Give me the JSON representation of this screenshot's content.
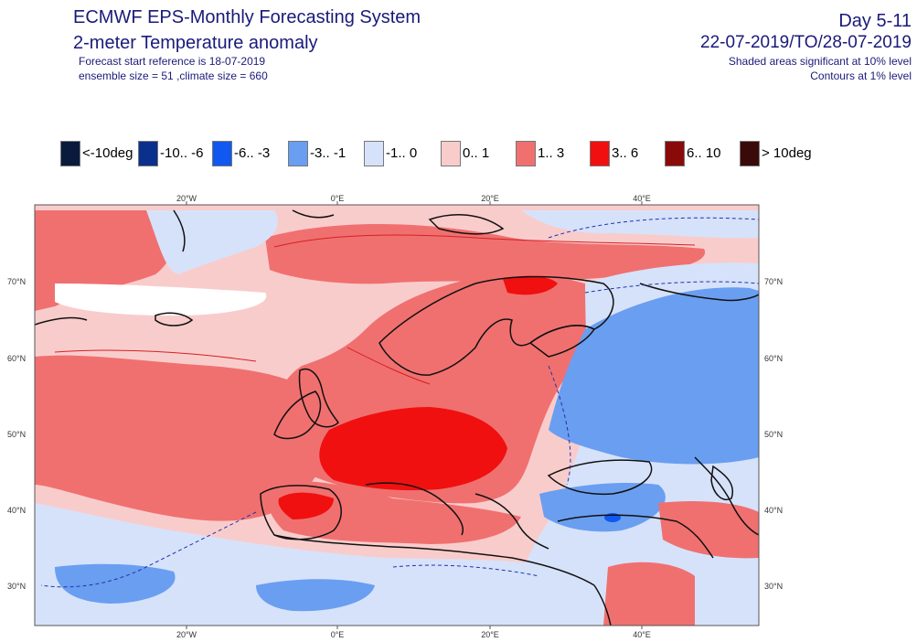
{
  "header": {
    "title": "ECMWF EPS-Monthly Forecasting System",
    "subtitle": "2-meter Temperature anomaly",
    "forecast_start": "Forecast start reference is 18-07-2019",
    "ensemble": "ensemble size = 51  ,climate size = 660",
    "period": "Day 5-11",
    "dates": "22-07-2019/TO/28-07-2019",
    "shaded_note": "Shaded areas significant at 10% level",
    "contour_note": "Contours at 1% level"
  },
  "legend": [
    {
      "label": "<-10deg",
      "color": "#0a1a3c"
    },
    {
      "label": "-10.. -6",
      "color": "#0b2f8c"
    },
    {
      "label": "-6.. -3",
      "color": "#1058f0"
    },
    {
      "label": "-3.. -1",
      "color": "#6a9ef0"
    },
    {
      "label": "-1.. 0",
      "color": "#d6e2fa"
    },
    {
      "label": "0.. 1",
      "color": "#f9cccc"
    },
    {
      "label": "1.. 3",
      "color": "#f07070"
    },
    {
      "label": "3.. 6",
      "color": "#f01010"
    },
    {
      "label": "6.. 10",
      "color": "#8a0a0a"
    },
    {
      "label": "> 10deg",
      "color": "#3a0a0a"
    }
  ],
  "map": {
    "lon_ticks": [
      "20°W",
      "0°E",
      "20°E",
      "40°E"
    ],
    "lat_ticks": [
      "70°N",
      "60°N",
      "50°N",
      "40°N",
      "30°N"
    ]
  }
}
